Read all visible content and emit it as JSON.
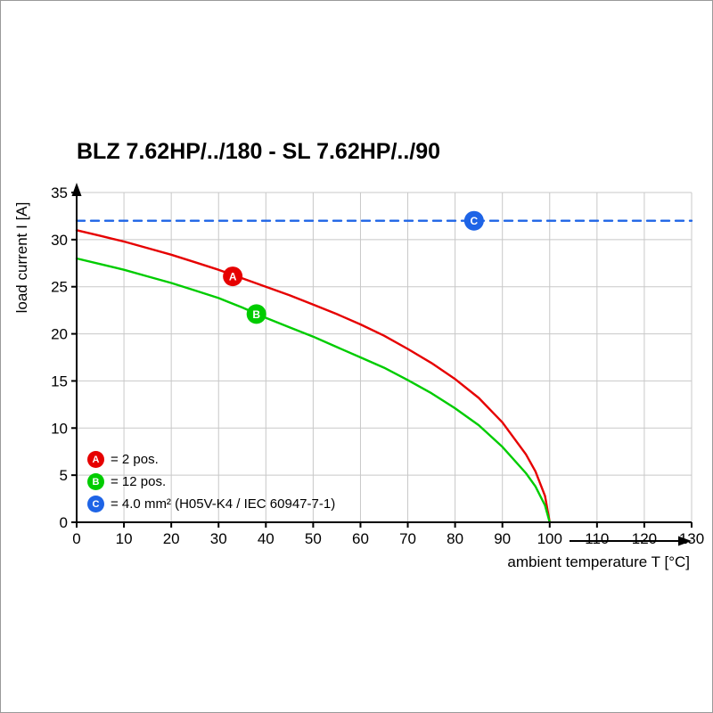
{
  "title": "BLZ 7.62HP/../180 - SL 7.62HP/../90",
  "chart_data": {
    "type": "line",
    "title": "BLZ 7.62HP/../180 - SL 7.62HP/../90",
    "xlabel": "ambient temperature T [°C]",
    "ylabel": "load current I [A]",
    "xlim": [
      0,
      130
    ],
    "ylim": [
      0,
      35
    ],
    "x_ticks": [
      0,
      10,
      20,
      30,
      40,
      50,
      60,
      70,
      80,
      90,
      100,
      110,
      120,
      130
    ],
    "y_ticks": [
      0,
      5,
      10,
      15,
      20,
      25,
      30,
      35
    ],
    "grid": true,
    "legend_position": "lower left",
    "colors": {
      "axis": "#000000",
      "grid": "#c8c8c8",
      "series_a": "#e60000",
      "series_b": "#00cc00",
      "series_c": "#1e64e6"
    },
    "series": [
      {
        "name": "A",
        "label": "= 2 pos.",
        "color": "#e60000",
        "style": "solid",
        "marker": {
          "t": 33,
          "i": 26.1
        },
        "points": [
          [
            0,
            31
          ],
          [
            5,
            30.4
          ],
          [
            10,
            29.8
          ],
          [
            15,
            29.1
          ],
          [
            20,
            28.4
          ],
          [
            25,
            27.6
          ],
          [
            30,
            26.8
          ],
          [
            35,
            25.9
          ],
          [
            40,
            25.0
          ],
          [
            45,
            24.1
          ],
          [
            50,
            23.1
          ],
          [
            55,
            22.1
          ],
          [
            60,
            21.0
          ],
          [
            65,
            19.8
          ],
          [
            70,
            18.4
          ],
          [
            75,
            16.9
          ],
          [
            80,
            15.2
          ],
          [
            85,
            13.2
          ],
          [
            90,
            10.6
          ],
          [
            95,
            7.2
          ],
          [
            97,
            5.4
          ],
          [
            99,
            2.8
          ],
          [
            100,
            0
          ]
        ]
      },
      {
        "name": "B",
        "label": "= 12 pos.",
        "color": "#00cc00",
        "style": "solid",
        "marker": {
          "t": 38,
          "i": 22.1
        },
        "points": [
          [
            0,
            28
          ],
          [
            5,
            27.4
          ],
          [
            10,
            26.8
          ],
          [
            15,
            26.1
          ],
          [
            20,
            25.4
          ],
          [
            25,
            24.6
          ],
          [
            30,
            23.8
          ],
          [
            35,
            22.8
          ],
          [
            40,
            21.7
          ],
          [
            45,
            20.7
          ],
          [
            50,
            19.7
          ],
          [
            55,
            18.6
          ],
          [
            60,
            17.5
          ],
          [
            65,
            16.4
          ],
          [
            70,
            15.1
          ],
          [
            75,
            13.7
          ],
          [
            80,
            12.1
          ],
          [
            85,
            10.3
          ],
          [
            90,
            8.0
          ],
          [
            95,
            5.2
          ],
          [
            97,
            3.8
          ],
          [
            99,
            1.8
          ],
          [
            100,
            0
          ]
        ]
      },
      {
        "name": "C",
        "label": "= 4.0 mm² (H05V-K4 / IEC 60947-7-1)",
        "color": "#1e64e6",
        "style": "dashed",
        "marker": {
          "t": 84,
          "i": 32
        },
        "points": [
          [
            0,
            32
          ],
          [
            130,
            32
          ]
        ]
      }
    ]
  }
}
